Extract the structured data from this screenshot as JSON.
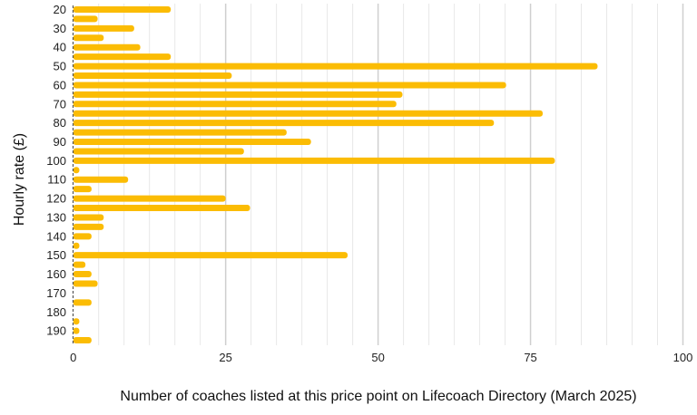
{
  "chart_data": {
    "type": "bar",
    "orientation": "horizontal",
    "title": "",
    "xlabel": "Number of coaches listed at this price point on Lifecoach Directory (March 2025)",
    "ylabel": "Hourly  rate (£)",
    "xlim": [
      0,
      100
    ],
    "xticks": [
      0,
      25,
      50,
      75,
      100
    ],
    "grid": true,
    "bar_color": "#FBBC04",
    "categories": [
      20,
      25,
      30,
      35,
      40,
      45,
      50,
      55,
      60,
      65,
      70,
      75,
      80,
      85,
      90,
      95,
      100,
      105,
      110,
      115,
      120,
      125,
      130,
      135,
      140,
      145,
      150,
      155,
      160,
      165,
      170,
      175,
      180,
      185,
      190,
      195
    ],
    "category_labels_shown": [
      20,
      30,
      40,
      50,
      60,
      70,
      80,
      90,
      100,
      110,
      120,
      130,
      140,
      150,
      160,
      170,
      180,
      190
    ],
    "values": [
      16,
      4,
      10,
      5,
      11,
      16,
      86,
      26,
      71,
      54,
      53,
      77,
      69,
      35,
      39,
      28,
      79,
      1,
      9,
      3,
      25,
      29,
      5,
      5,
      3,
      1,
      45,
      2,
      3,
      4,
      0,
      3,
      0,
      1,
      1,
      3
    ]
  }
}
